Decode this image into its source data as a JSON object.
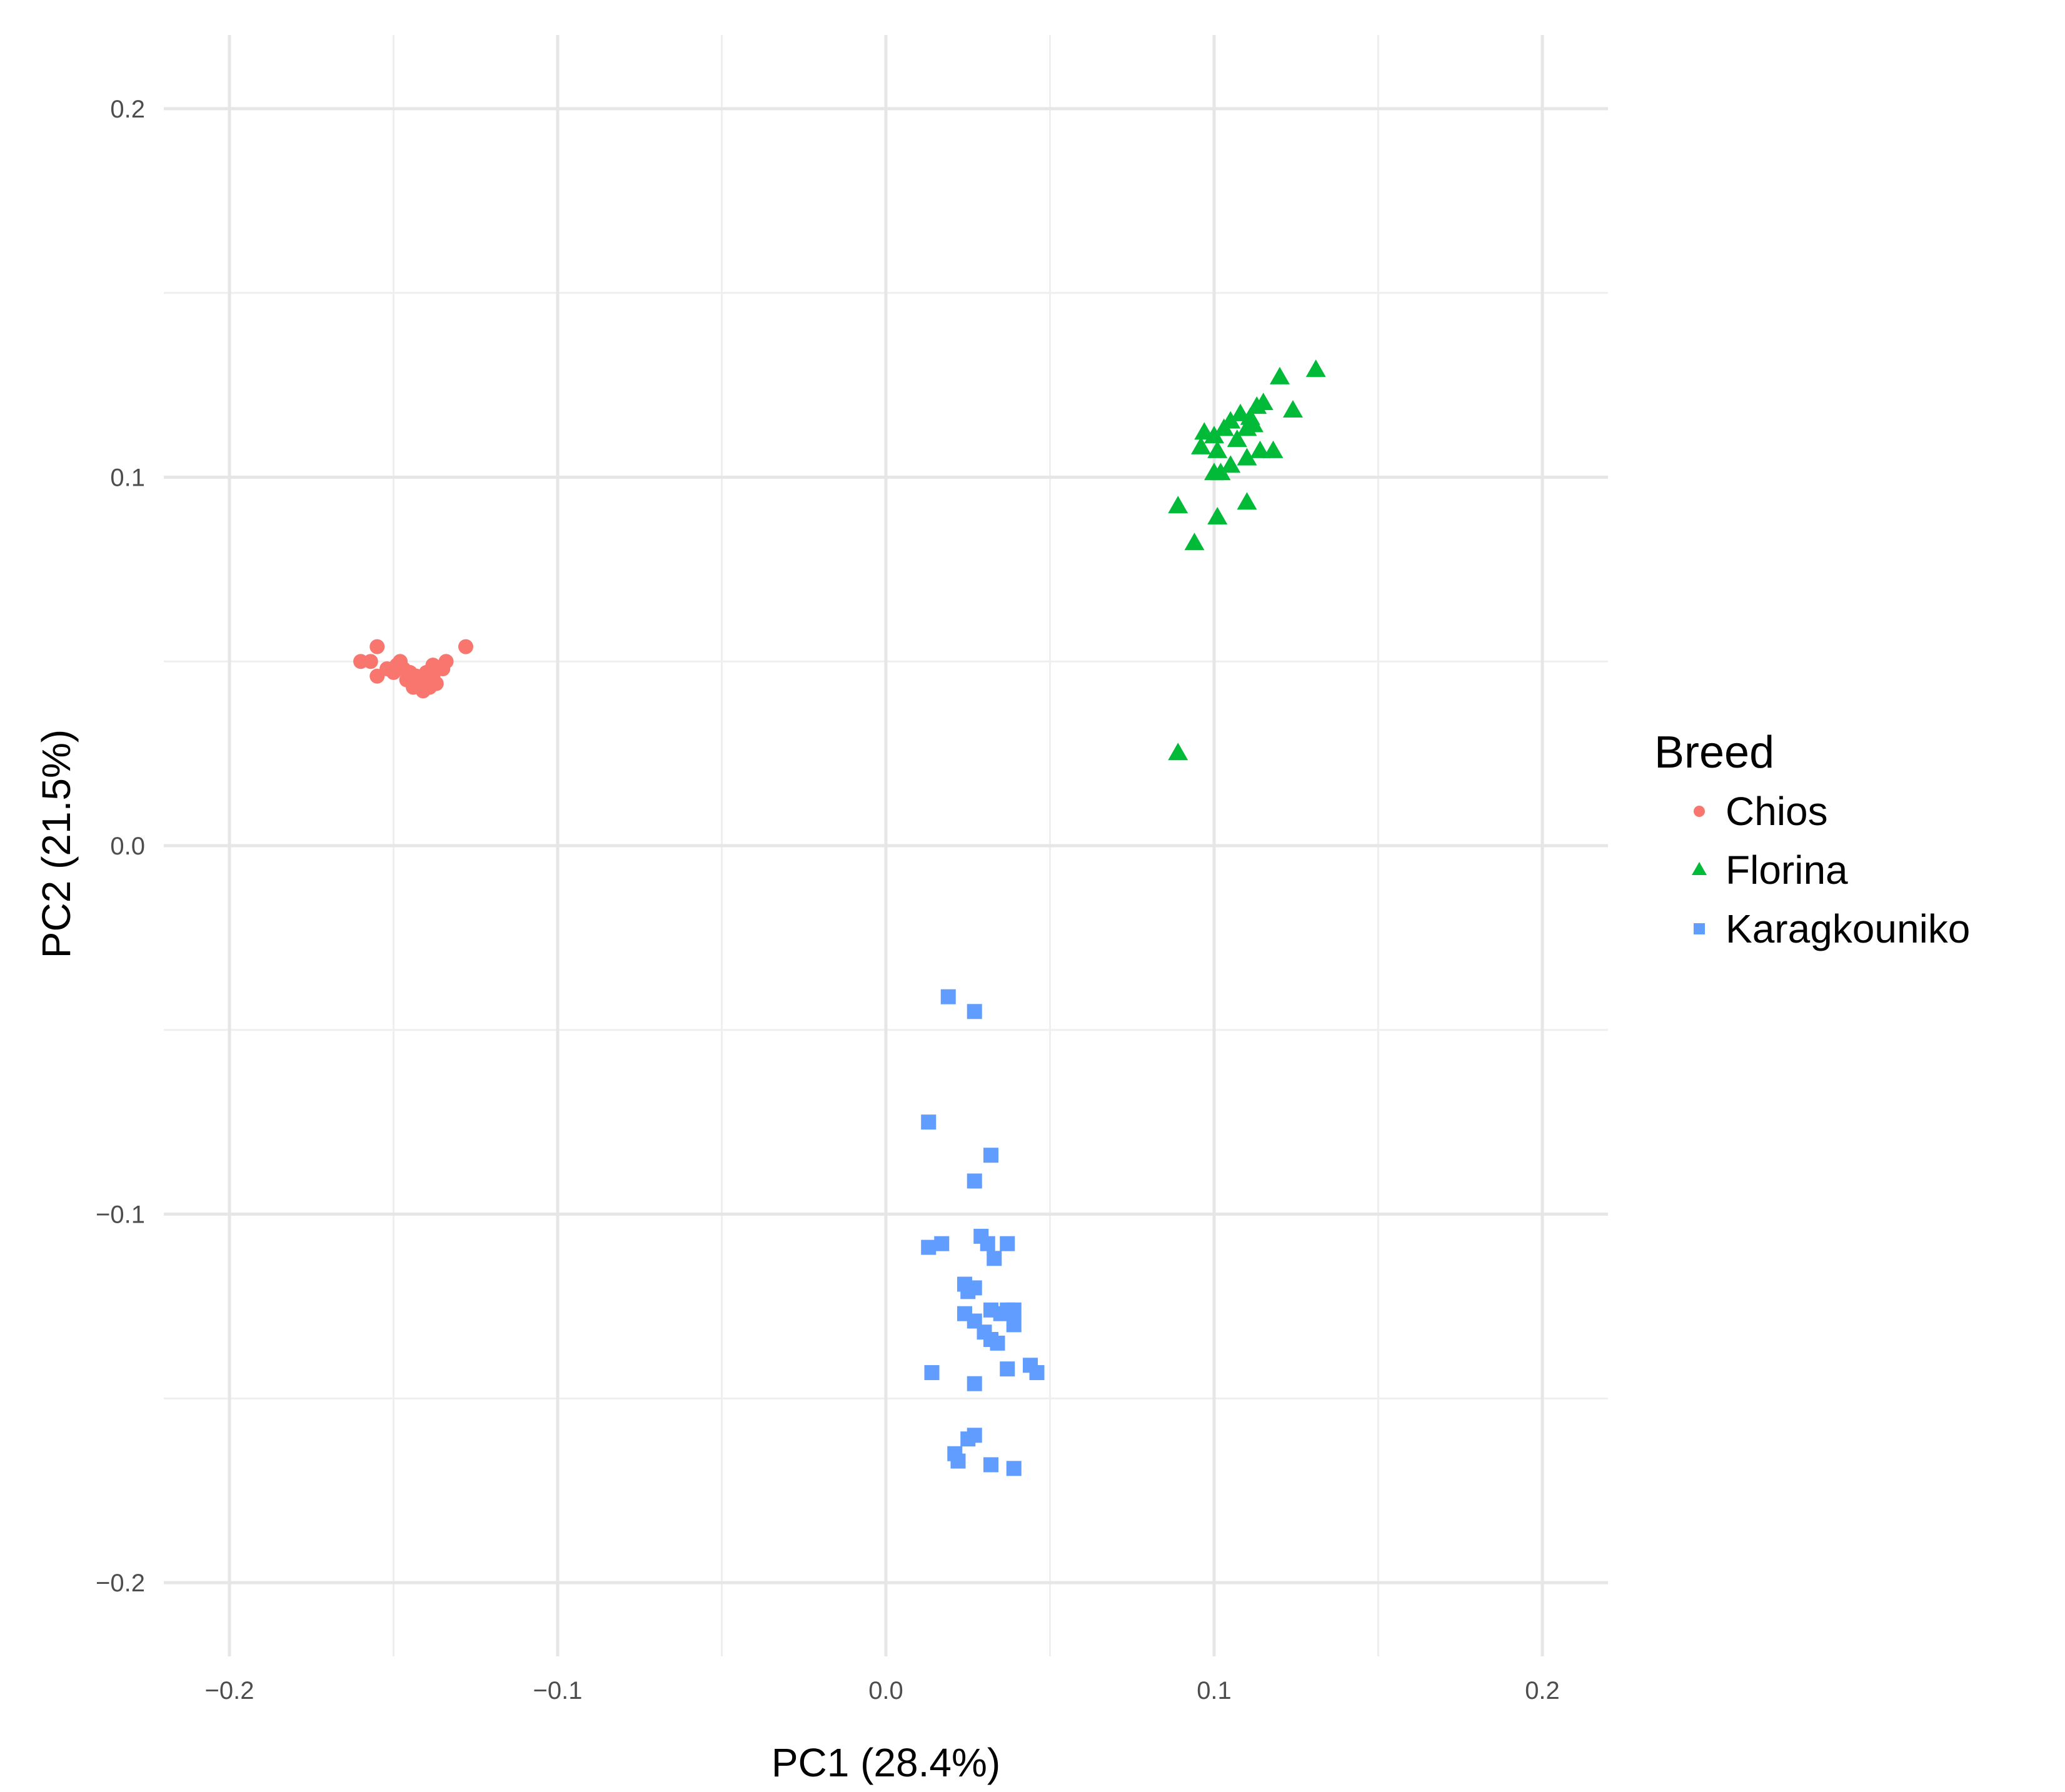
{
  "chart_data": {
    "type": "scatter",
    "title": "",
    "xlabel": "PC1 (28.4%)",
    "ylabel": "PC2 (21.5%)",
    "xlim": [
      -0.22,
      0.22
    ],
    "ylim": [
      -0.22,
      0.22
    ],
    "x_ticks": [
      -0.2,
      -0.1,
      0.0,
      0.1,
      0.2
    ],
    "x_tick_labels": [
      "−0.2",
      "−0.1",
      "0.0",
      "0.1",
      "0.2"
    ],
    "y_ticks": [
      -0.2,
      -0.1,
      0.0,
      0.1,
      0.2
    ],
    "y_tick_labels": [
      "−0.2",
      "−0.1",
      "0.0",
      "0.1",
      "0.2"
    ],
    "grid": true,
    "legend": {
      "title": "Breed",
      "position": "right"
    },
    "series": [
      {
        "name": "Chios",
        "shape": "circle",
        "color": "#F8766D",
        "points": [
          [
            -0.16,
            0.05
          ],
          [
            -0.157,
            0.05
          ],
          [
            -0.155,
            0.054
          ],
          [
            -0.155,
            0.046
          ],
          [
            -0.152,
            0.048
          ],
          [
            -0.15,
            0.047
          ],
          [
            -0.149,
            0.049
          ],
          [
            -0.148,
            0.05
          ],
          [
            -0.147,
            0.048
          ],
          [
            -0.146,
            0.045
          ],
          [
            -0.145,
            0.047
          ],
          [
            -0.144,
            0.043
          ],
          [
            -0.143,
            0.046
          ],
          [
            -0.142,
            0.044
          ],
          [
            -0.141,
            0.042
          ],
          [
            -0.14,
            0.047
          ],
          [
            -0.139,
            0.045
          ],
          [
            -0.139,
            0.043
          ],
          [
            -0.138,
            0.049
          ],
          [
            -0.138,
            0.046
          ],
          [
            -0.137,
            0.044
          ],
          [
            -0.135,
            0.048
          ],
          [
            -0.134,
            0.05
          ],
          [
            -0.128,
            0.054
          ]
        ]
      },
      {
        "name": "Florina",
        "shape": "triangle",
        "color": "#00BA38",
        "points": [
          [
            0.131,
            0.129
          ],
          [
            0.12,
            0.127
          ],
          [
            0.124,
            0.118
          ],
          [
            0.115,
            0.12
          ],
          [
            0.113,
            0.119
          ],
          [
            0.111,
            0.116
          ],
          [
            0.108,
            0.117
          ],
          [
            0.105,
            0.115
          ],
          [
            0.103,
            0.113
          ],
          [
            0.1,
            0.111
          ],
          [
            0.097,
            0.112
          ],
          [
            0.096,
            0.108
          ],
          [
            0.101,
            0.107
          ],
          [
            0.107,
            0.11
          ],
          [
            0.11,
            0.113
          ],
          [
            0.112,
            0.114
          ],
          [
            0.114,
            0.107
          ],
          [
            0.118,
            0.107
          ],
          [
            0.11,
            0.105
          ],
          [
            0.105,
            0.103
          ],
          [
            0.1,
            0.101
          ],
          [
            0.102,
            0.101
          ],
          [
            0.089,
            0.092
          ],
          [
            0.11,
            0.093
          ],
          [
            0.101,
            0.089
          ],
          [
            0.094,
            0.082
          ],
          [
            0.089,
            0.025
          ]
        ]
      },
      {
        "name": "Karagkouniko",
        "shape": "square",
        "color": "#619CFF",
        "points": [
          [
            0.019,
            -0.041
          ],
          [
            0.027,
            -0.045
          ],
          [
            0.013,
            -0.075
          ],
          [
            0.032,
            -0.084
          ],
          [
            0.027,
            -0.091
          ],
          [
            0.029,
            -0.106
          ],
          [
            0.013,
            -0.109
          ],
          [
            0.017,
            -0.108
          ],
          [
            0.031,
            -0.108
          ],
          [
            0.037,
            -0.108
          ],
          [
            0.033,
            -0.112
          ],
          [
            0.024,
            -0.119
          ],
          [
            0.027,
            -0.12
          ],
          [
            0.025,
            -0.121
          ],
          [
            0.024,
            -0.127
          ],
          [
            0.027,
            -0.129
          ],
          [
            0.032,
            -0.126
          ],
          [
            0.035,
            -0.127
          ],
          [
            0.037,
            -0.126
          ],
          [
            0.039,
            -0.126
          ],
          [
            0.039,
            -0.13
          ],
          [
            0.03,
            -0.132
          ],
          [
            0.032,
            -0.134
          ],
          [
            0.034,
            -0.135
          ],
          [
            0.037,
            -0.142
          ],
          [
            0.044,
            -0.141
          ],
          [
            0.046,
            -0.143
          ],
          [
            0.014,
            -0.143
          ],
          [
            0.027,
            -0.146
          ],
          [
            0.027,
            -0.16
          ],
          [
            0.025,
            -0.161
          ],
          [
            0.021,
            -0.165
          ],
          [
            0.022,
            -0.167
          ],
          [
            0.032,
            -0.168
          ],
          [
            0.039,
            -0.169
          ]
        ]
      }
    ]
  }
}
